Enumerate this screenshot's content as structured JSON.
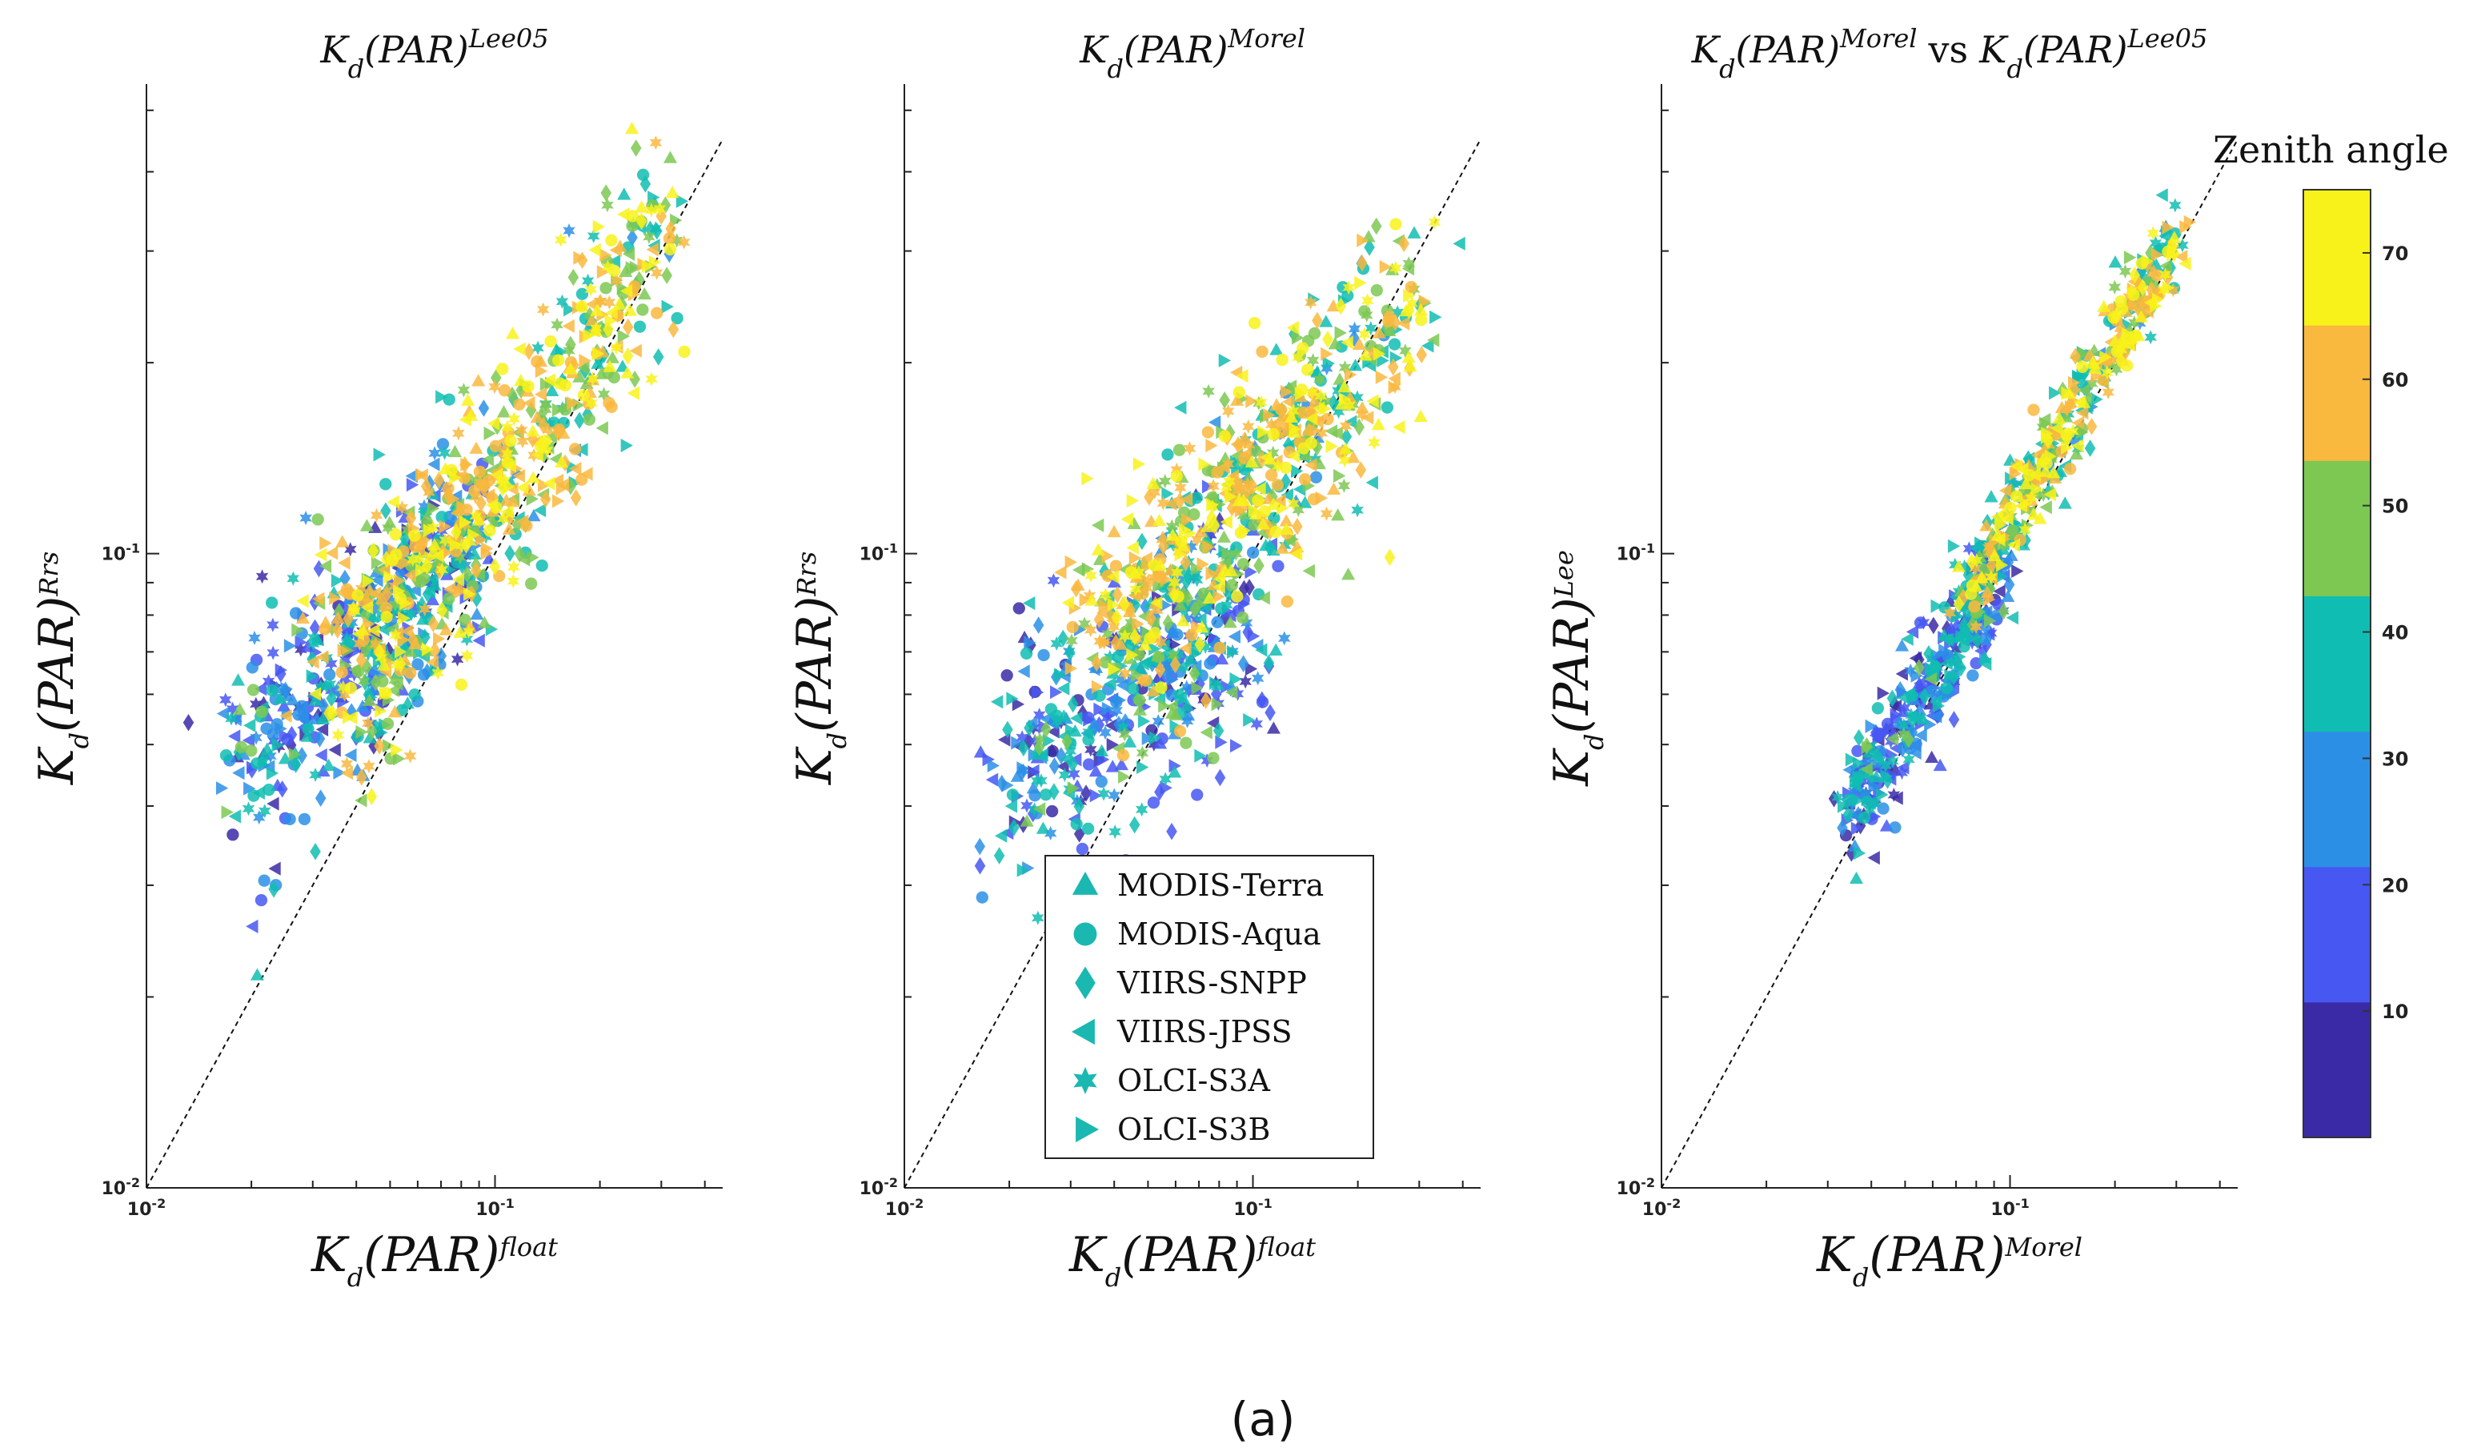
{
  "chart_data": [
    {
      "type": "scatter",
      "title": "Kd(PAR)Lee05",
      "title_parts": {
        "main": "K",
        "sub": "d",
        "mid": "(PAR)",
        "sup": "Lee05"
      },
      "xlabel_parts": {
        "main": "K",
        "sub": "d",
        "mid": "(PAR)",
        "sup": "float"
      },
      "ylabel_parts": {
        "main": "K",
        "sub": "d",
        "mid": "(PAR)",
        "sup": "Rrs"
      },
      "xscale": "log",
      "yscale": "log",
      "xlim": [
        0.01,
        0.45
      ],
      "ylim": [
        0.01,
        0.55
      ],
      "x_ticks": [
        "10-2",
        "10-1"
      ],
      "y_ticks": [
        "10-2",
        "10-1"
      ],
      "reference_line": "1:1 dashed",
      "clouds": [
        {
          "x": [
            0.018,
            0.09
          ],
          "y": [
            0.045,
            0.11
          ],
          "spread": 0.09,
          "count": 420,
          "zmin": 5,
          "zmax": 45
        },
        {
          "x": [
            0.04,
            0.32
          ],
          "y": [
            0.06,
            0.33
          ],
          "spread": 0.085,
          "count": 520,
          "zmin": 30,
          "zmax": 75
        },
        {
          "x": [
            0.03,
            0.18
          ],
          "y": [
            0.07,
            0.17
          ],
          "spread": 0.07,
          "count": 170,
          "zmin": 50,
          "zmax": 68
        }
      ]
    },
    {
      "type": "scatter",
      "title": "Kd(PAR)Morel",
      "title_parts": {
        "main": "K",
        "sub": "d",
        "mid": "(PAR)",
        "sup": "Morel"
      },
      "xlabel_parts": {
        "main": "K",
        "sub": "d",
        "mid": "(PAR)",
        "sup": "float"
      },
      "ylabel_parts": {
        "main": "K",
        "sub": "d",
        "mid": "(PAR)",
        "sup": "Rrs"
      },
      "xscale": "log",
      "yscale": "log",
      "xlim": [
        0.01,
        0.45
      ],
      "ylim": [
        0.01,
        0.55
      ],
      "x_ticks": [
        "10-2",
        "10-1"
      ],
      "y_ticks": [
        "10-2",
        "10-1"
      ],
      "reference_line": "1:1 dashed",
      "clouds": [
        {
          "x": [
            0.02,
            0.1
          ],
          "y": [
            0.045,
            0.08
          ],
          "spread": 0.1,
          "count": 420,
          "zmin": 5,
          "zmax": 45
        },
        {
          "x": [
            0.04,
            0.3
          ],
          "y": [
            0.07,
            0.26
          ],
          "spread": 0.09,
          "count": 520,
          "zmin": 30,
          "zmax": 75
        },
        {
          "x": [
            0.03,
            0.15
          ],
          "y": [
            0.08,
            0.15
          ],
          "spread": 0.08,
          "count": 170,
          "zmin": 50,
          "zmax": 68
        }
      ]
    },
    {
      "type": "scatter",
      "title": "Kd(PAR)Morel vs Kd(PAR)Lee05",
      "title_parts": {
        "main": "K",
        "sub": "d",
        "mid": "(PAR)",
        "sup": "Morel",
        "vs": "vs",
        "main2": "K",
        "sub2": "d",
        "mid2": "(PAR)",
        "sup2": "Lee05"
      },
      "xlabel_parts": {
        "main": "K",
        "sub": "d",
        "mid": "(PAR)",
        "sup": "Morel"
      },
      "ylabel_parts": {
        "main": "K",
        "sub": "d",
        "mid": "(PAR)",
        "sup": "Lee"
      },
      "xscale": "log",
      "yscale": "log",
      "xlim": [
        0.01,
        0.45
      ],
      "ylim": [
        0.01,
        0.55
      ],
      "x_ticks": [
        "10-2",
        "10-1"
      ],
      "y_ticks": [
        "10-2",
        "10-1"
      ],
      "reference_line": "1:1 dashed",
      "clouds": [
        {
          "x": [
            0.035,
            0.1
          ],
          "y": [
            0.04,
            0.1
          ],
          "spread": 0.045,
          "count": 380,
          "zmin": 5,
          "zmax": 45
        },
        {
          "x": [
            0.07,
            0.3
          ],
          "y": [
            0.08,
            0.32
          ],
          "spread": 0.035,
          "count": 420,
          "zmin": 30,
          "zmax": 75
        }
      ]
    }
  ],
  "legend": {
    "placement": "panel-2 lower-center",
    "color": "#1bb8b2",
    "items": [
      {
        "label": "MODIS-Terra",
        "marker": "triangle-up"
      },
      {
        "label": "MODIS-Aqua",
        "marker": "circle"
      },
      {
        "label": "VIIRS-SNPP",
        "marker": "diamond"
      },
      {
        "label": "VIIRS-JPSS",
        "marker": "triangle-left"
      },
      {
        "label": "OLCI-S3A",
        "marker": "hexagram"
      },
      {
        "label": "OLCI-S3B",
        "marker": "triangle-right"
      }
    ]
  },
  "colorbar": {
    "title": "Zenith angle",
    "range": [
      0,
      75
    ],
    "ticks": [
      "10",
      "20",
      "30",
      "40",
      "50",
      "60",
      "70"
    ],
    "tick_values": [
      10,
      20,
      30,
      40,
      50,
      60,
      70
    ],
    "bands": [
      "#3a2aa6",
      "#4757f2",
      "#2c8fe6",
      "#10bdb2",
      "#7cc853",
      "#f9b83e",
      "#f8f21a"
    ]
  },
  "caption": "(a)"
}
